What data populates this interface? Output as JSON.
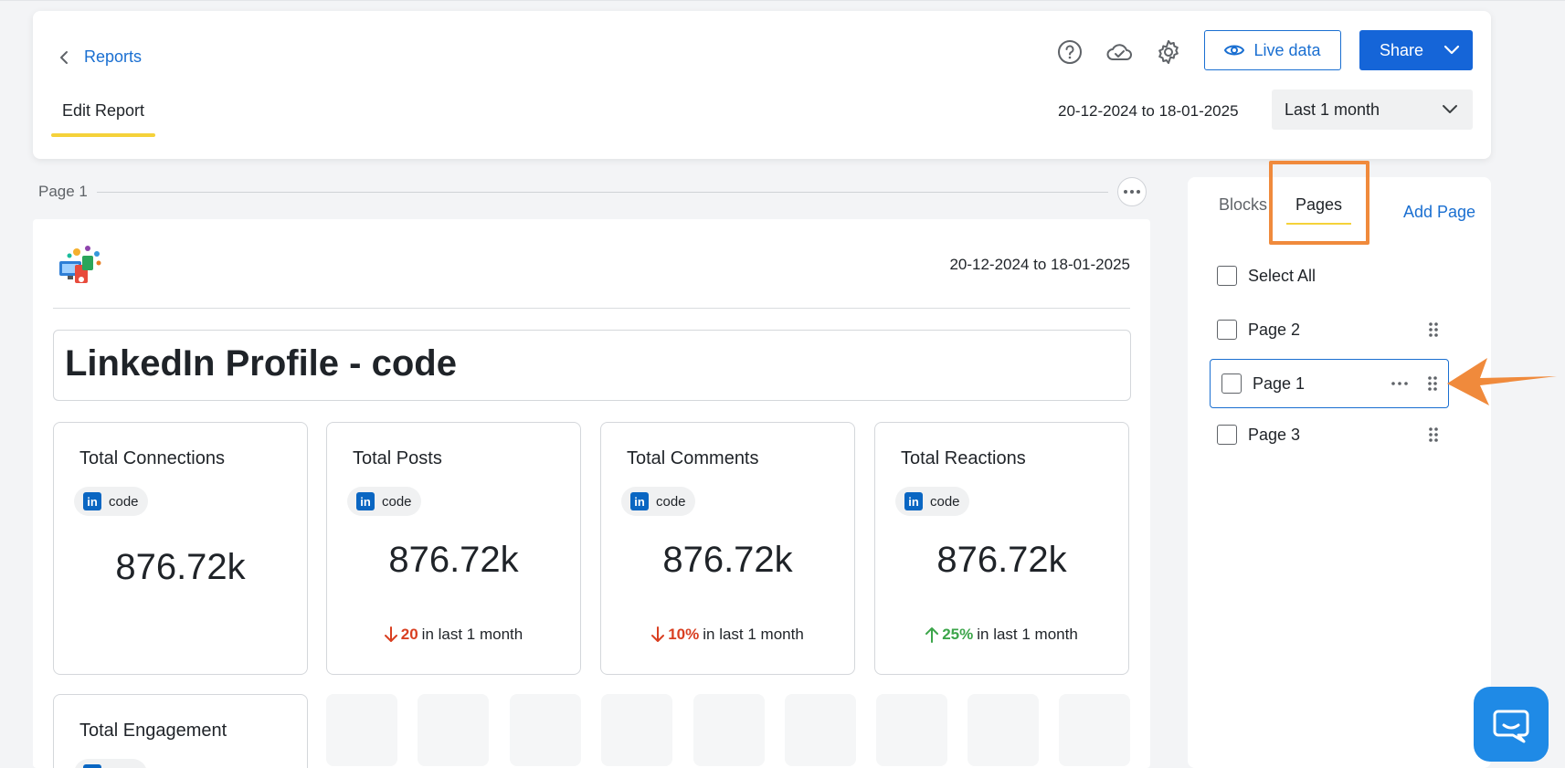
{
  "header": {
    "back_label": "Reports",
    "tab_label": "Edit Report",
    "live_label": "Live data",
    "share_label": "Share",
    "date_range": "20-12-2024 to 18-01-2025",
    "period": "Last 1 month"
  },
  "canvas": {
    "page_label": "Page 1",
    "date_range": "20-12-2024 to 18-01-2025",
    "title": "LinkedIn Profile - code",
    "metrics": [
      {
        "title": "Total Connections",
        "account": "code",
        "value": "876.72k",
        "change": "",
        "change_text": ""
      },
      {
        "title": "Total Posts",
        "account": "code",
        "value": "876.72k",
        "change": "20",
        "direction": "down",
        "change_text": "in last 1 month"
      },
      {
        "title": "Total Comments",
        "account": "code",
        "value": "876.72k",
        "change": "10%",
        "direction": "down",
        "change_text": "in last 1 month"
      },
      {
        "title": "Total Reactions",
        "account": "code",
        "value": "876.72k",
        "change": "25%",
        "direction": "up",
        "change_text": "in last 1 month"
      }
    ],
    "engagement_title": "Total Engagement"
  },
  "panel": {
    "tab_blocks": "Blocks",
    "tab_pages": "Pages",
    "add_page": "Add Page",
    "select_all": "Select All",
    "pages": [
      "Page 2",
      "Page 1",
      "Page 3"
    ]
  },
  "colors": {
    "accent": "#1a6fd1",
    "highlight": "#f08a3c",
    "underline": "#f5d23a",
    "down": "#d93f21",
    "up": "#3ca54a"
  }
}
